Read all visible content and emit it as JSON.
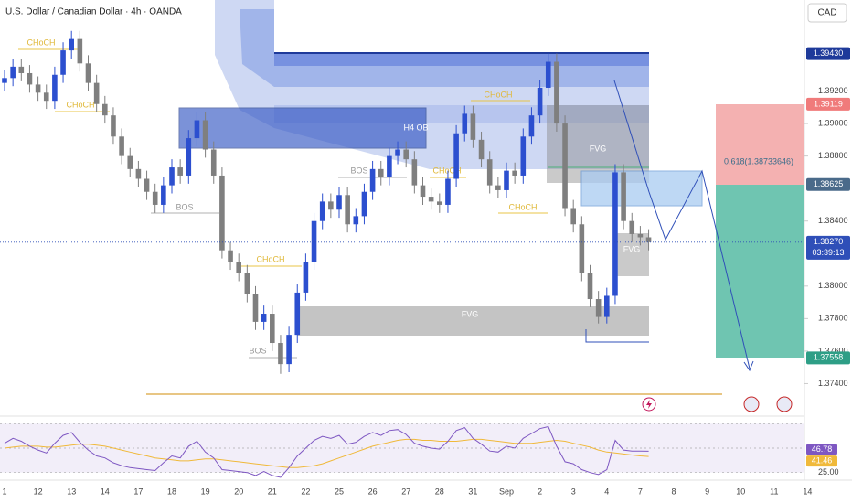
{
  "chart_data": {
    "type": "candlestick",
    "title": "U.S. Dollar / Canadian Dollar · 4h · OANDA",
    "currency": "CAD",
    "up_color": "#2c4fcf",
    "down_color": "#7f7f7f",
    "categories": [
      "1",
      null,
      null,
      null,
      "12",
      null,
      null,
      null,
      "13",
      null,
      null,
      null,
      "14",
      null,
      null,
      null,
      "17",
      null,
      null,
      null,
      "18",
      null,
      null,
      null,
      "19",
      null,
      null,
      null,
      "20",
      null,
      null,
      null,
      "21",
      null,
      null,
      null,
      "22",
      null,
      null,
      null,
      "25",
      null,
      null,
      null,
      "26",
      null,
      null,
      null,
      "27",
      null,
      null,
      null,
      "28",
      null,
      null,
      null,
      "31",
      null,
      null,
      null,
      "Sep",
      null,
      null,
      null,
      "2",
      null,
      null,
      null,
      "3",
      null,
      null,
      null,
      "4",
      null,
      null,
      null,
      "7",
      null,
      null,
      null,
      "8",
      null,
      null,
      null,
      "9",
      null,
      null,
      null,
      "10",
      null,
      null,
      null,
      "11",
      null,
      null,
      null,
      "14",
      null,
      null,
      null
    ],
    "ohlc": [
      [
        1.3925,
        1.3933,
        1.392,
        1.3928
      ],
      [
        1.3928,
        1.394,
        1.3923,
        1.3935
      ],
      [
        1.3935,
        1.394,
        1.3926,
        1.3931
      ],
      [
        1.3931,
        1.3936,
        1.3919,
        1.3924
      ],
      [
        1.3924,
        1.3929,
        1.3914,
        1.3919
      ],
      [
        1.3919,
        1.3924,
        1.3909,
        1.3914
      ],
      [
        1.3914,
        1.3935,
        1.3909,
        1.393
      ],
      [
        1.393,
        1.395,
        1.3925,
        1.3945
      ],
      [
        1.3945,
        1.3957,
        1.394,
        1.3952
      ],
      [
        1.3952,
        1.3957,
        1.3932,
        1.3937
      ],
      [
        1.3937,
        1.3942,
        1.392,
        1.3925
      ],
      [
        1.3925,
        1.393,
        1.3907,
        1.3912
      ],
      [
        1.3912,
        1.3917,
        1.39,
        1.3905
      ],
      [
        1.3905,
        1.391,
        1.3887,
        1.3892
      ],
      [
        1.3892,
        1.3897,
        1.3875,
        1.388
      ],
      [
        1.388,
        1.3885,
        1.3867,
        1.3872
      ],
      [
        1.3872,
        1.3877,
        1.3861,
        1.3866
      ],
      [
        1.3866,
        1.3871,
        1.3853,
        1.3858
      ],
      [
        1.3858,
        1.3863,
        1.3845,
        1.385
      ],
      [
        1.385,
        1.3867,
        1.3845,
        1.3862
      ],
      [
        1.3862,
        1.3878,
        1.3857,
        1.3873
      ],
      [
        1.3873,
        1.3878,
        1.3863,
        1.3868
      ],
      [
        1.3868,
        1.3896,
        1.3863,
        1.3891
      ],
      [
        1.3891,
        1.3907,
        1.3886,
        1.3902
      ],
      [
        1.3902,
        1.3907,
        1.3879,
        1.3884
      ],
      [
        1.3884,
        1.3889,
        1.3863,
        1.3868
      ],
      [
        1.3868,
        1.3873,
        1.3817,
        1.3822
      ],
      [
        1.3822,
        1.3827,
        1.381,
        1.3815
      ],
      [
        1.3815,
        1.382,
        1.3803,
        1.3808
      ],
      [
        1.3808,
        1.3813,
        1.379,
        1.3795
      ],
      [
        1.3795,
        1.38,
        1.3773,
        1.3778
      ],
      [
        1.3778,
        1.3788,
        1.3773,
        1.3783
      ],
      [
        1.3783,
        1.3788,
        1.376,
        1.3765
      ],
      [
        1.3765,
        1.377,
        1.3746,
        1.3752
      ],
      [
        1.3752,
        1.3775,
        1.3747,
        1.377
      ],
      [
        1.377,
        1.3801,
        1.3765,
        1.3796
      ],
      [
        1.3796,
        1.382,
        1.3791,
        1.3815
      ],
      [
        1.3815,
        1.3845,
        1.381,
        1.384
      ],
      [
        1.384,
        1.3857,
        1.3835,
        1.3852
      ],
      [
        1.3852,
        1.3857,
        1.3842,
        1.3847
      ],
      [
        1.3847,
        1.3861,
        1.3842,
        1.3856
      ],
      [
        1.3856,
        1.3861,
        1.3833,
        1.3838
      ],
      [
        1.3838,
        1.3848,
        1.3833,
        1.3843
      ],
      [
        1.3843,
        1.3863,
        1.3838,
        1.3858
      ],
      [
        1.3858,
        1.3877,
        1.3853,
        1.3872
      ],
      [
        1.3872,
        1.3877,
        1.3862,
        1.3867
      ],
      [
        1.3867,
        1.3885,
        1.3862,
        1.388
      ],
      [
        1.388,
        1.3889,
        1.3875,
        1.3884
      ],
      [
        1.3884,
        1.3889,
        1.3873,
        1.3878
      ],
      [
        1.3878,
        1.3883,
        1.3857,
        1.3862
      ],
      [
        1.3862,
        1.3867,
        1.385,
        1.3855
      ],
      [
        1.3855,
        1.386,
        1.3847,
        1.3852
      ],
      [
        1.3852,
        1.3857,
        1.3845,
        1.385
      ],
      [
        1.385,
        1.3871,
        1.3845,
        1.3866
      ],
      [
        1.3866,
        1.3899,
        1.3861,
        1.3894
      ],
      [
        1.3894,
        1.3911,
        1.3889,
        1.3906
      ],
      [
        1.3906,
        1.3911,
        1.3885,
        1.389
      ],
      [
        1.389,
        1.3895,
        1.3873,
        1.3878
      ],
      [
        1.3878,
        1.3883,
        1.3857,
        1.3862
      ],
      [
        1.3862,
        1.3867,
        1.3854,
        1.3859
      ],
      [
        1.3859,
        1.3876,
        1.3854,
        1.3871
      ],
      [
        1.3871,
        1.3876,
        1.3863,
        1.3868
      ],
      [
        1.3868,
        1.3897,
        1.3863,
        1.3892
      ],
      [
        1.3892,
        1.391,
        1.3887,
        1.3905
      ],
      [
        1.3905,
        1.3927,
        1.39,
        1.3922
      ],
      [
        1.3922,
        1.3943,
        1.3917,
        1.3938
      ],
      [
        1.3938,
        1.3943,
        1.3895,
        1.39
      ],
      [
        1.39,
        1.3905,
        1.3843,
        1.3848
      ],
      [
        1.3848,
        1.3853,
        1.3833,
        1.3838
      ],
      [
        1.3838,
        1.3843,
        1.3803,
        1.3808
      ],
      [
        1.3808,
        1.3813,
        1.3787,
        1.3792
      ],
      [
        1.3792,
        1.3797,
        1.3777,
        1.3781
      ],
      [
        1.3781,
        1.3799,
        1.3777,
        1.3794
      ],
      [
        1.3794,
        1.3875,
        1.3789,
        1.387
      ],
      [
        1.387,
        1.3875,
        1.3835,
        1.384
      ],
      [
        1.384,
        1.3845,
        1.3827,
        1.3832
      ],
      [
        1.3832,
        1.3837,
        1.3825,
        1.383
      ],
      [
        1.383,
        1.3835,
        1.3822,
        1.3827
      ],
      null,
      null,
      null,
      null,
      null,
      null,
      null,
      null,
      null,
      null,
      null,
      null,
      null,
      null,
      null,
      null,
      null,
      null,
      null,
      null,
      null,
      null
    ],
    "ylim": [
      1.372,
      1.3976
    ],
    "yticks": [
      {
        "value": 1.374,
        "label": "1.37400"
      },
      {
        "value": 1.376,
        "label": "1.37600"
      },
      {
        "value": 1.378,
        "label": "1.37800"
      },
      {
        "value": 1.38,
        "label": "1.38000"
      },
      {
        "value": 1.384,
        "label": "1.38400"
      },
      {
        "value": 1.388,
        "label": "1.38800"
      },
      {
        "value": 1.39,
        "label": "1.39000"
      },
      {
        "value": 1.392,
        "label": "1.39200"
      }
    ],
    "grid": false,
    "price_labels": [
      {
        "value": 1.3943,
        "label": "1.39430",
        "color": "#1e3a9a"
      },
      {
        "value": 1.39119,
        "label": "1.39119",
        "color": "#f07b7b"
      },
      {
        "value": 1.38625,
        "label": "1.38625",
        "color": "#4a6a8a"
      },
      {
        "value": 1.3827,
        "label": "1.38270",
        "color": "#2f4fb8"
      },
      {
        "value": 1.37558,
        "label": "1.37558",
        "color": "#2e9e86"
      }
    ],
    "countdown": "03:39:13",
    "rsi": [
      55,
      60,
      57,
      52,
      48,
      45,
      55,
      63,
      66,
      56,
      48,
      42,
      40,
      35,
      32,
      30,
      29,
      28,
      27,
      35,
      42,
      40,
      52,
      57,
      46,
      40,
      28,
      27,
      26,
      25,
      22,
      26,
      22,
      20,
      30,
      42,
      50,
      58,
      62,
      60,
      63,
      54,
      56,
      62,
      66,
      63,
      68,
      69,
      64,
      55,
      52,
      50,
      49,
      57,
      68,
      71,
      60,
      54,
      47,
      46,
      52,
      50,
      60,
      65,
      70,
      72,
      52,
      36,
      34,
      28,
      25,
      23,
      28,
      58,
      48,
      47,
      47,
      46.78,
      null,
      null,
      null,
      null,
      null,
      null,
      null,
      null,
      null,
      null,
      null,
      null,
      null,
      null,
      null,
      null,
      null,
      null,
      null,
      null,
      null,
      null
    ],
    "rsi_value_labels": [
      "46.78"
    ],
    "rsi_ma": [
      50,
      51,
      52,
      52,
      52,
      51,
      51,
      52,
      53,
      54,
      54,
      53,
      52,
      50,
      48,
      46,
      44,
      42,
      40,
      39,
      38,
      37,
      37,
      38,
      39,
      39,
      38,
      37,
      36,
      35,
      34,
      33,
      32,
      31,
      30,
      30,
      31,
      32,
      34,
      37,
      40,
      43,
      46,
      49,
      52,
      54,
      56,
      58,
      59,
      59,
      58,
      58,
      57,
      57,
      57,
      58,
      59,
      59,
      58,
      57,
      56,
      55,
      55,
      55,
      56,
      57,
      58,
      57,
      55,
      53,
      51,
      48,
      46,
      45,
      44,
      43,
      42,
      41.46,
      null,
      null,
      null,
      null,
      null,
      null,
      null,
      null,
      null,
      null,
      null,
      null,
      null,
      null,
      null,
      null,
      null,
      null,
      null,
      null,
      null,
      null
    ],
    "rsi_ma_value_labels": [
      "41.46"
    ],
    "rsi_color": "#7e57c2",
    "rsi_ma_color": "#f0b93a",
    "rsi_ylim": [
      20,
      80
    ],
    "rsi_levels": [
      75,
      50,
      25
    ],
    "rsi_level_label": {
      "value": 25,
      "label": "25.00"
    },
    "annotations": {
      "ob": "H4 OB",
      "fvg": [
        "FVG",
        "FVG",
        "FVG"
      ],
      "bos": [
        "BOS",
        "BOS",
        "BOS"
      ],
      "choch": [
        "CHoCH",
        "CHoCH",
        "CHoCH",
        "CHoCH",
        "CHoCH",
        "CHoCH"
      ],
      "fib": "0.618(1.38733646)"
    }
  }
}
